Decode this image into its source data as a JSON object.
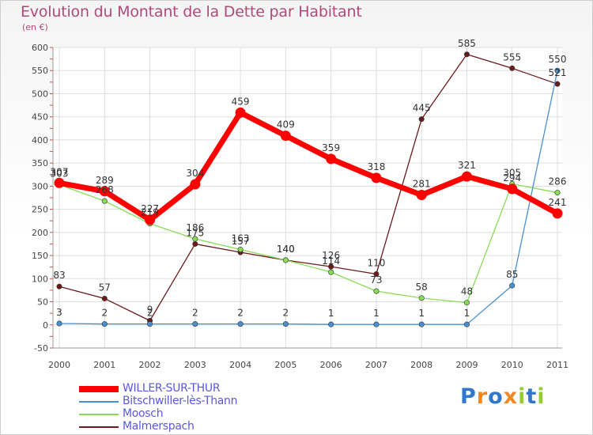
{
  "chart_data": {
    "type": "line",
    "title": "Evolution du Montant de la Dette par Habitant",
    "subtitle": "(en €)",
    "x": [
      "2000",
      "2001",
      "2002",
      "2003",
      "2004",
      "2005",
      "2006",
      "2007",
      "2008",
      "2009",
      "2010",
      "2011"
    ],
    "yticks": [
      "600",
      "550",
      "500",
      "450",
      "400",
      "350",
      "300",
      "250",
      "200",
      "150",
      "100",
      "50",
      "0",
      "-50"
    ],
    "ylim": [
      -50,
      600
    ],
    "grid": true,
    "legend_position": "bottom-left",
    "series": [
      {
        "name": "WILLER-SUR-THUR",
        "color": "#ff0000",
        "values": [
          307,
          289,
          227,
          304,
          459,
          409,
          359,
          318,
          281,
          321,
          294,
          241
        ]
      },
      {
        "name": "Bitschwiller-lès-Thann",
        "color": "#4a90d0",
        "values": [
          3,
          2,
          2,
          2,
          2,
          2,
          1,
          1,
          1,
          1,
          85,
          550
        ]
      },
      {
        "name": "Moosch",
        "color": "#88dd55",
        "values": [
          303,
          268,
          219,
          186,
          163,
          140,
          114,
          73,
          58,
          48,
          305,
          286
        ]
      },
      {
        "name": "Malmerspach",
        "color": "#6b1a1a",
        "values": [
          83,
          57,
          9,
          175,
          157,
          140,
          126,
          110,
          445,
          585,
          555,
          521
        ]
      }
    ]
  },
  "logo": {
    "letters": [
      "P",
      "r",
      "o",
      "x",
      "i",
      "t",
      "i"
    ],
    "colors": [
      "#3377cc",
      "#ee8822",
      "#3377cc",
      "#ee8822",
      "#99cc33",
      "#3377cc",
      "#99cc33"
    ]
  }
}
